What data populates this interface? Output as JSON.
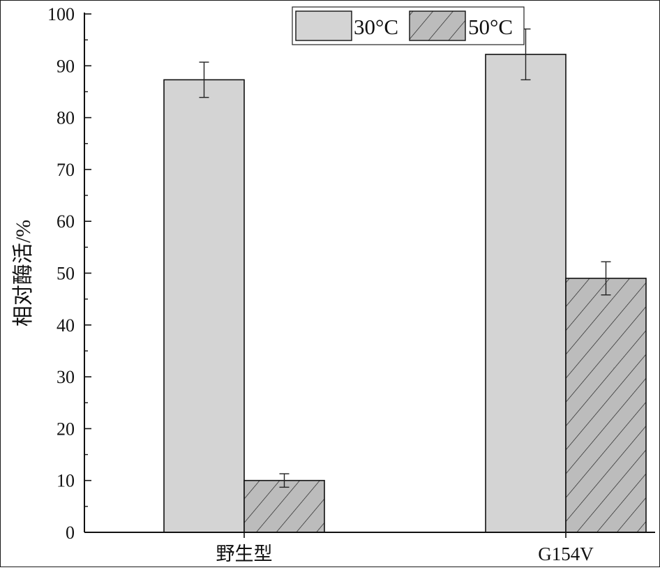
{
  "chart_data": {
    "type": "bar",
    "title": "",
    "xlabel": "",
    "ylabel": "相对酶活/%",
    "categories": [
      "野生型",
      "G154V"
    ],
    "series": [
      {
        "name": "30°C",
        "values": [
          87.3,
          92.2
        ],
        "errors": [
          3.4,
          4.9
        ],
        "pattern": "solid",
        "color": "#d4d4d4"
      },
      {
        "name": "50°C",
        "values": [
          10.0,
          49.0
        ],
        "errors": [
          1.3,
          3.2
        ],
        "pattern": "hatched",
        "color": "#bcbcbc"
      }
    ],
    "ylim": [
      0,
      100
    ],
    "yticks": [
      0,
      10,
      20,
      30,
      40,
      50,
      60,
      70,
      80,
      90,
      100
    ],
    "ytick_labels": [
      "0",
      "10",
      "20",
      "30",
      "40",
      "50",
      "60",
      "70",
      "80",
      "90",
      "100"
    ],
    "grid": false,
    "legend_position": "top-right"
  }
}
